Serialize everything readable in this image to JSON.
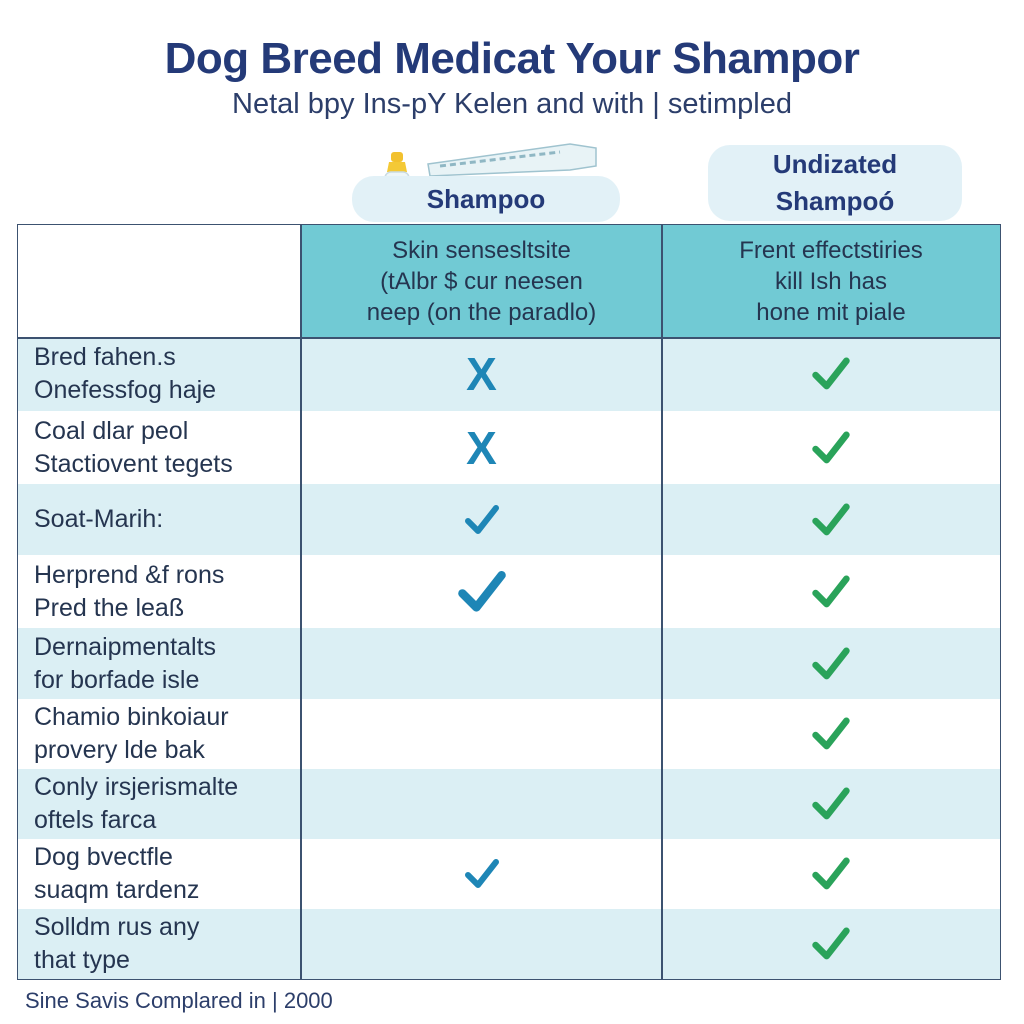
{
  "header": {
    "title": "Dog Breed Medicat Your Shampor",
    "subtitle": "Netal bpy Ins-pY Kelen and with | setimpled"
  },
  "products": {
    "col1_label": "Shampoo",
    "col2_label_line1": "Undizated",
    "col2_label_line2": "Shampoó"
  },
  "table": {
    "col1_header": [
      "Skin sensesltsite",
      "(tAlbr $ cur neesen",
      "neep (on the paradlo)"
    ],
    "col2_header": [
      "Frent effectstiries",
      "kill Ish has",
      "hone mit piale"
    ],
    "rows": [
      {
        "label": [
          "Bred fahen.s",
          "Onefessfog haje"
        ],
        "col1": "cross",
        "col2": "check"
      },
      {
        "label": [
          "Coal dlar peol",
          "Stactiovent tegets"
        ],
        "col1": "cross",
        "col2": "check"
      },
      {
        "label": [
          "Soat-Marih:"
        ],
        "col1": "check",
        "col2": "check"
      },
      {
        "label": [
          "Herprend &f rons",
          "Pred the leaß"
        ],
        "col1": "check-large",
        "col2": "check"
      },
      {
        "label": [
          "Dernaipmentalts",
          "for borfade isle"
        ],
        "col1": "none",
        "col2": "check"
      },
      {
        "label": [
          "Chamio binkoiaur",
          "provery lde bak"
        ],
        "col1": "none",
        "col2": "check"
      },
      {
        "label": [
          "Conly irsjerismalte",
          "oftels farca"
        ],
        "col1": "none",
        "col2": "check"
      },
      {
        "label": [
          "Dog bvectfle",
          "suaqm tardenz"
        ],
        "col1": "check",
        "col2": "check"
      },
      {
        "label": [
          "Solldm rus any",
          "that type"
        ],
        "col1": "none",
        "col2": "check"
      }
    ]
  },
  "footer": {
    "text": "Sine Savis Complared in | 2000"
  },
  "colors": {
    "title": "#243a78",
    "header_fill": "#71cad4",
    "row_alt": "#dbeff4",
    "cross": "#1e86b6",
    "check_blue": "#1e86b6",
    "check_green": "#2aa35a"
  },
  "icons": {
    "cross": "x-mark-icon",
    "check_blue": "blue-check-icon",
    "check_green": "green-check-icon"
  }
}
